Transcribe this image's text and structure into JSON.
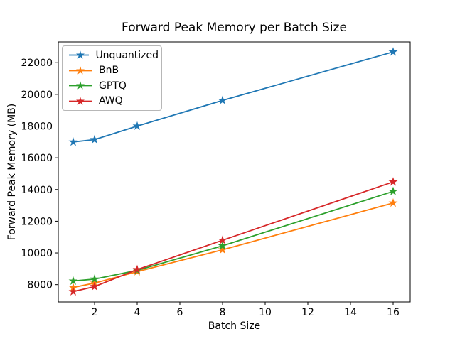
{
  "chart_data": {
    "type": "line",
    "title": "Forward Peak Memory per Batch Size",
    "xlabel": "Batch Size",
    "ylabel": "Forward Peak Memory (MB)",
    "x": [
      1,
      2,
      4,
      8,
      16
    ],
    "series": [
      {
        "name": "Unquantized",
        "color": "#1f77b4",
        "values": [
          17000,
          17150,
          18000,
          19620,
          22680
        ]
      },
      {
        "name": "BnB",
        "color": "#ff7f0e",
        "values": [
          7820,
          8100,
          8820,
          10200,
          13150
        ]
      },
      {
        "name": "GPTQ",
        "color": "#2ca02c",
        "values": [
          8230,
          8350,
          8900,
          10450,
          13880
        ]
      },
      {
        "name": "AWQ",
        "color": "#d62728",
        "values": [
          7560,
          7880,
          8950,
          10800,
          14480
        ]
      }
    ],
    "xticks": [
      2,
      4,
      6,
      8,
      10,
      12,
      14,
      16
    ],
    "yticks": [
      8000,
      10000,
      12000,
      14000,
      16000,
      18000,
      20000,
      22000
    ],
    "xlim": [
      0.3,
      16.8
    ],
    "ylim": [
      6910,
      23310
    ],
    "marker": "star",
    "grid": false,
    "legend_position": "upper left",
    "axis_color": "#000000"
  }
}
